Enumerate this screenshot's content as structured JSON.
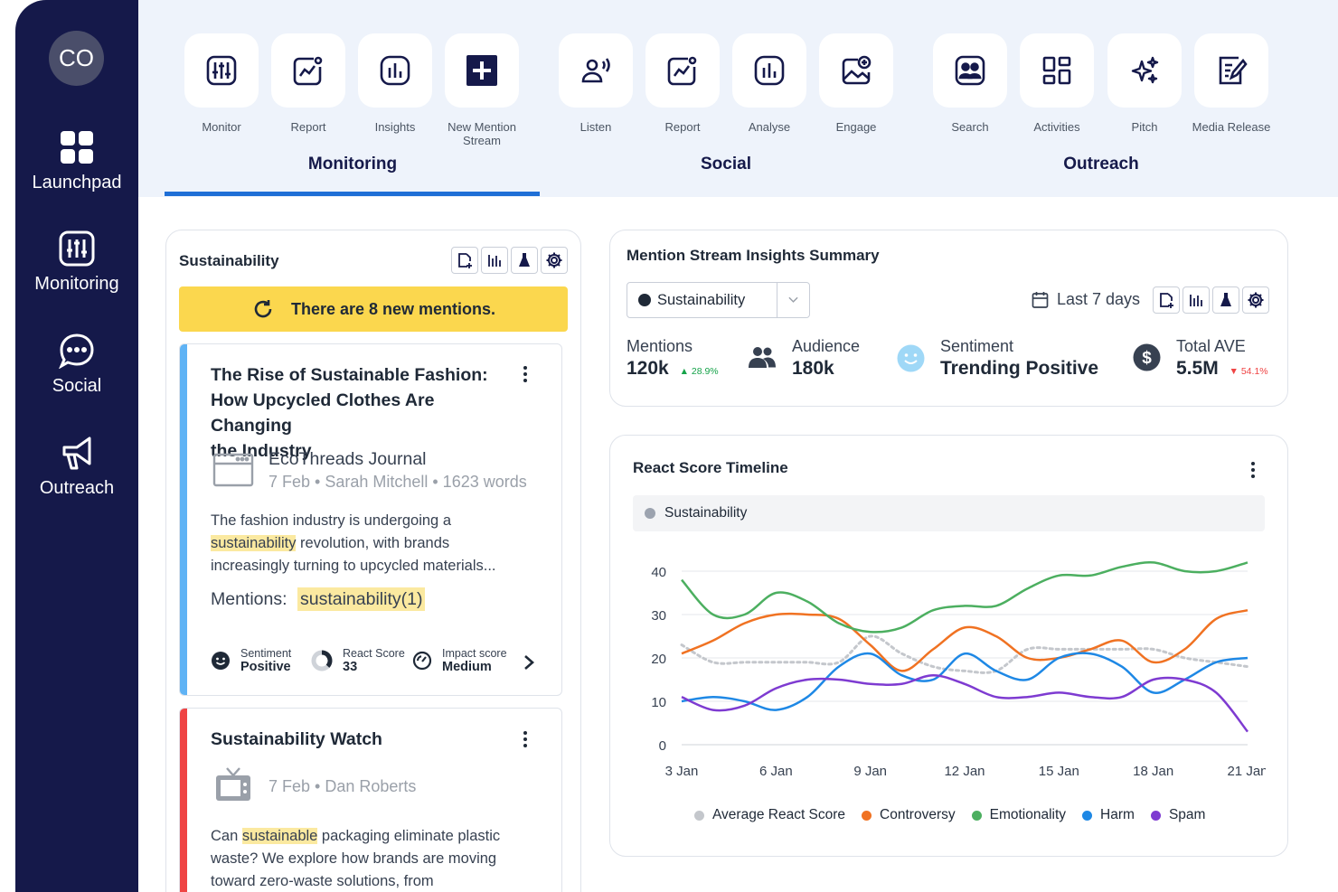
{
  "user": {
    "initials": "CO"
  },
  "sidebar": {
    "items": [
      {
        "label": "Launchpad",
        "icon": "grid-icon"
      },
      {
        "label": "Monitoring",
        "icon": "monitor-sliders-icon"
      },
      {
        "label": "Social",
        "icon": "chat-bubble-icon"
      },
      {
        "label": "Outreach",
        "icon": "megaphone-icon"
      }
    ]
  },
  "toolbar": {
    "monitoring": {
      "title": "Monitoring",
      "tools": [
        {
          "label": "Monitor",
          "icon": "sliders-icon"
        },
        {
          "label": "Report",
          "icon": "report-chart-icon"
        },
        {
          "label": "Insights",
          "icon": "bar-chart-icon"
        },
        {
          "label": "New Mention Stream",
          "icon": "plus-square-icon"
        }
      ]
    },
    "social": {
      "title": "Social",
      "tools": [
        {
          "label": "Listen",
          "icon": "listen-icon"
        },
        {
          "label": "Report",
          "icon": "report-chart-icon"
        },
        {
          "label": "Analyse",
          "icon": "bar-chart-icon"
        },
        {
          "label": "Engage",
          "icon": "image-plus-icon"
        }
      ]
    },
    "outreach": {
      "title": "Outreach",
      "tools": [
        {
          "label": "Search",
          "icon": "contact-search-icon"
        },
        {
          "label": "Activities",
          "icon": "dashboard-icon"
        },
        {
          "label": "Pitch",
          "icon": "sparkles-icon"
        },
        {
          "label": "Media Release",
          "icon": "edit-document-icon"
        }
      ]
    },
    "active_tab": "Monitoring"
  },
  "stream": {
    "title": "Sustainability",
    "banner": "There are 8 new mentions.",
    "articles": [
      {
        "title": "The Rise of Sustainable Fashion: How Upcycled Clothes Are Changing the Industry",
        "title_lines": [
          "The Rise of Sustainable Fashion:",
          "How Upcycled Clothes Are Changing",
          "the Industry"
        ],
        "source": "EcoThreads Journal",
        "meta": "7 Feb • Sarah Mitchell • 1623 words",
        "snippet_a": "The fashion industry is undergoing a",
        "snippet_hl": "sustainability",
        "snippet_b": " revolution, with brands",
        "snippet_c": "increasingly turning to upcycled materials...",
        "mentions_label": "Mentions:",
        "mentions_value": "sustainability(1)",
        "sentiment_label": "Sentiment",
        "sentiment_value": "Positive",
        "react_label": "React Score",
        "react_value": "33",
        "impact_label": "Impact score",
        "impact_value": "Medium",
        "stripe_color": "#5fb3f5"
      },
      {
        "title": "Sustainability Watch",
        "meta": "7 Feb • Dan Roberts",
        "snippet_a": "Can ",
        "snippet_hl": "sustainable",
        "snippet_b": " packaging eliminate plastic",
        "snippet_c": "waste? We explore how brands are moving",
        "snippet_d": "toward zero-waste solutions, from",
        "stripe_color": "#ef4444"
      }
    ]
  },
  "insights": {
    "title": "Mention Stream Insights Summary",
    "stream_select": "Sustainability",
    "date_range": "Last 7 days",
    "kpis": {
      "mentions": {
        "label": "Mentions",
        "value": "120k",
        "delta": "28.9%",
        "delta_color": "#16a34a"
      },
      "audience": {
        "label": "Audience",
        "value": "180k"
      },
      "sentiment": {
        "label": "Sentiment",
        "value": "Trending Positive"
      },
      "ave": {
        "label": "Total AVE",
        "value": "5.5M",
        "delta": "54.1%",
        "delta_color": "#ef4444"
      }
    }
  },
  "timeline": {
    "title": "React Score Timeline",
    "filter_chip": "Sustainability"
  },
  "chart_data": {
    "type": "line",
    "x_ticks": [
      "3 Jan",
      "6 Jan",
      "9 Jan",
      "12 Jan",
      "15 Jan",
      "18 Jan",
      "21 Jan"
    ],
    "x_range": [
      3,
      21
    ],
    "ylim": [
      0,
      40
    ],
    "y_ticks": [
      0,
      10,
      20,
      30,
      40
    ],
    "grid": true,
    "legend_position": "bottom",
    "series": [
      {
        "name": "Average React Score",
        "color": "#c4c7cc",
        "dashed": true,
        "x": [
          3,
          4,
          5,
          6,
          7,
          8,
          9,
          10,
          11,
          12,
          13,
          14,
          15,
          16,
          17,
          18,
          19,
          20,
          21
        ],
        "y": [
          23,
          19,
          19,
          19,
          19,
          19,
          25,
          21,
          18,
          17,
          17,
          22,
          22,
          22,
          22,
          22,
          20,
          19,
          18
        ]
      },
      {
        "name": "Controversy",
        "color": "#f07222",
        "x": [
          3,
          4,
          5,
          6,
          7,
          8,
          9,
          10,
          11,
          12,
          13,
          14,
          15,
          16,
          17,
          18,
          19,
          20,
          21
        ],
        "y": [
          21,
          24,
          28,
          30,
          30,
          29,
          23,
          17,
          22,
          27,
          25,
          20,
          20,
          22,
          24,
          19,
          22,
          29,
          31
        ]
      },
      {
        "name": "Emotionality",
        "color": "#4caf60",
        "x": [
          3,
          4,
          5,
          6,
          7,
          8,
          9,
          10,
          11,
          12,
          13,
          14,
          15,
          16,
          17,
          18,
          19,
          20,
          21
        ],
        "y": [
          38,
          30,
          30,
          35,
          33,
          28,
          26,
          27,
          31,
          32,
          32,
          36,
          39,
          39,
          41,
          42,
          40,
          40,
          42
        ]
      },
      {
        "name": "Harm",
        "color": "#1e88e5",
        "x": [
          3,
          4,
          5,
          6,
          7,
          8,
          9,
          10,
          11,
          12,
          13,
          14,
          15,
          16,
          17,
          18,
          19,
          20,
          21
        ],
        "y": [
          10,
          11,
          10,
          8,
          11,
          18,
          21,
          16,
          15,
          21,
          17,
          15,
          20,
          21,
          18,
          12,
          15,
          19,
          20
        ]
      },
      {
        "name": "Spam",
        "color": "#7e3bd1",
        "x": [
          3,
          4,
          5,
          6,
          7,
          8,
          9,
          10,
          11,
          12,
          13,
          14,
          15,
          16,
          17,
          18,
          19,
          20,
          21
        ],
        "y": [
          11,
          8,
          9,
          13,
          15,
          15,
          14,
          14,
          16,
          14,
          11,
          11,
          12,
          11,
          11,
          15,
          15,
          12,
          3
        ]
      }
    ]
  }
}
